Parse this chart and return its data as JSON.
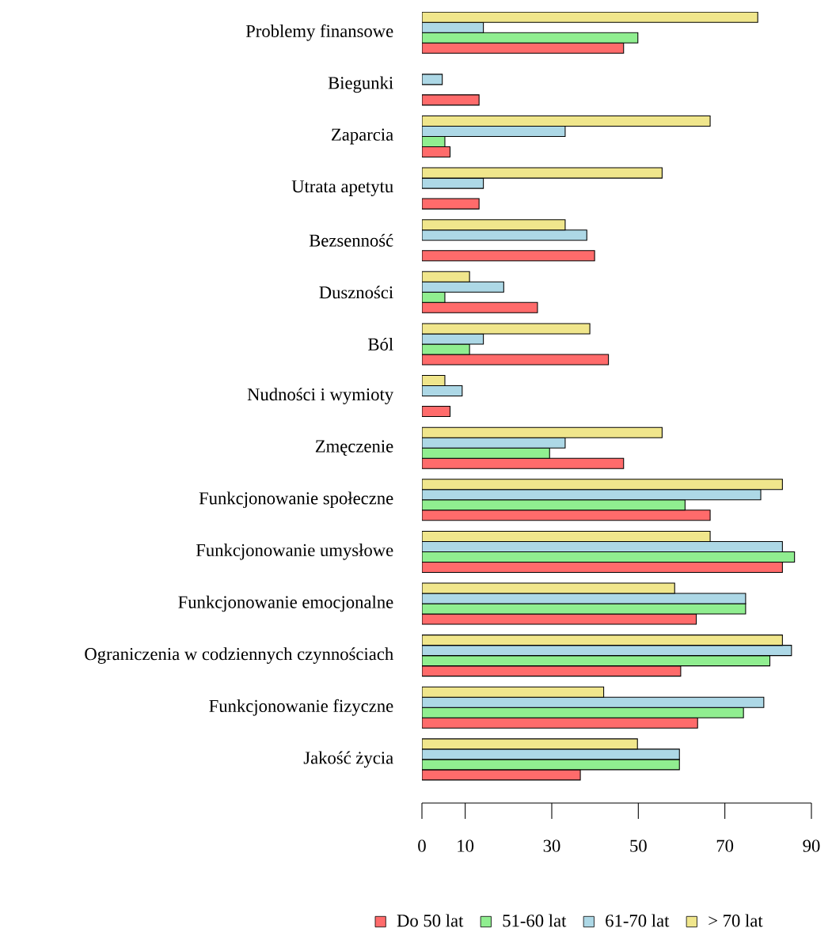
{
  "chart_data": {
    "type": "bar",
    "orientation": "horizontal",
    "categories": [
      "Problemy finansowe",
      "Biegunki",
      "Zaparcia",
      "Utrata apetytu",
      "Bezsenność",
      "Duszności",
      "Ból",
      "Nudności i wymioty",
      "Zmęczenie",
      "Funkcjonowanie społeczne",
      "Funkcjonowanie umysłowe",
      "Funkcjonowanie emocjonalne",
      "Ograniczenia w codziennych czynnościach",
      "Funkcjonowanie fizyczne",
      "Jakość życia"
    ],
    "series": [
      {
        "name": "Do 50 lat",
        "color": "#ff6b6b",
        "values": [
          46.6,
          13.2,
          6.5,
          13.2,
          39.9,
          26.7,
          43.1,
          6.5,
          46.6,
          66.6,
          83.3,
          63.4,
          59.8,
          63.7,
          36.6
        ]
      },
      {
        "name": "51-60 lat",
        "color": "#90ee90",
        "values": [
          49.9,
          null,
          5.3,
          null,
          null,
          5.3,
          11.0,
          null,
          29.5,
          60.8,
          86.1,
          74.8,
          80.4,
          74.3,
          59.5
        ]
      },
      {
        "name": "61-70 lat",
        "color": "#add8e6",
        "values": [
          14.2,
          4.7,
          33.1,
          14.2,
          38.1,
          18.9,
          14.2,
          9.3,
          33.1,
          78.3,
          83.3,
          74.8,
          85.4,
          79.0,
          59.5
        ]
      },
      {
        "name": "> 70 lat",
        "color": "#f0e68c",
        "values": [
          77.6,
          null,
          66.6,
          55.5,
          33.1,
          11.0,
          38.8,
          5.3,
          55.5,
          83.3,
          66.6,
          58.4,
          83.3,
          42.0,
          49.8
        ]
      }
    ],
    "xlim": [
      0,
      90
    ],
    "xticks": [
      0,
      10,
      30,
      50,
      70,
      90
    ],
    "grid": false,
    "legend": "bottom"
  }
}
